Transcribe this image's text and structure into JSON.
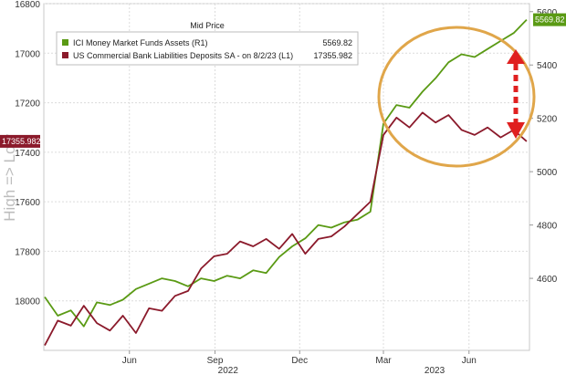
{
  "chart_data": {
    "type": "line",
    "title": "Mid Price",
    "ylabel_left": "High => Low",
    "left_axis": {
      "inverted": true,
      "ylim": [
        16800,
        18200
      ],
      "ticks": [
        16800,
        17000,
        17200,
        17400,
        17600,
        17800,
        18000
      ]
    },
    "right_axis": {
      "ylim": [
        4330,
        5630
      ],
      "ticks": [
        4600,
        4800,
        5000,
        5200,
        5400,
        5600
      ]
    },
    "xlim": [
      "2022-03-01",
      "2023-08-05"
    ],
    "x_ticks": [
      {
        "label": "Jun",
        "date": "2022-06-01"
      },
      {
        "label": "Sep",
        "date": "2022-09-01"
      },
      {
        "label": "Dec",
        "date": "2022-12-01"
      },
      {
        "label": "Mar",
        "date": "2023-03-01"
      },
      {
        "label": "Jun",
        "date": "2023-06-01"
      }
    ],
    "x_years": [
      {
        "label": "2022",
        "date": "2022-09-15"
      },
      {
        "label": "2023",
        "date": "2023-04-25"
      }
    ],
    "grid": true,
    "legend_position": "top-left",
    "series": [
      {
        "name": "ICI Money Market Funds Assets (R1)",
        "legend_value": "5569.82",
        "last_label": "5569.82",
        "axis": "right",
        "color": "#5a9a14",
        "x": [
          "2022-03-02",
          "2022-03-16",
          "2022-03-30",
          "2022-04-13",
          "2022-04-27",
          "2022-05-11",
          "2022-05-25",
          "2022-06-08",
          "2022-06-22",
          "2022-07-06",
          "2022-07-20",
          "2022-08-03",
          "2022-08-17",
          "2022-08-31",
          "2022-09-14",
          "2022-09-28",
          "2022-10-12",
          "2022-10-26",
          "2022-11-09",
          "2022-11-23",
          "2022-12-07",
          "2022-12-21",
          "2023-01-04",
          "2023-01-18",
          "2023-02-01",
          "2023-02-15",
          "2023-03-01",
          "2023-03-15",
          "2023-03-29",
          "2023-04-12",
          "2023-04-26",
          "2023-05-10",
          "2023-05-24",
          "2023-06-07",
          "2023-06-21",
          "2023-07-05",
          "2023-07-19",
          "2023-08-02"
        ],
        "values": [
          4530,
          4460,
          4480,
          4420,
          4510,
          4500,
          4520,
          4560,
          4580,
          4600,
          4590,
          4570,
          4600,
          4590,
          4610,
          4600,
          4630,
          4620,
          4680,
          4720,
          4750,
          4800,
          4790,
          4810,
          4820,
          4850,
          5180,
          5250,
          5240,
          5300,
          5350,
          5410,
          5440,
          5430,
          5460,
          5490,
          5520,
          5569.82
        ]
      },
      {
        "name": "US Commercial Bank Liabilities Deposits SA - on 8/2/23 (L1)",
        "legend_value": "17355.982",
        "last_label": "17355.982",
        "axis": "left",
        "color": "#8b1a2b",
        "x": [
          "2022-03-02",
          "2022-03-16",
          "2022-03-30",
          "2022-04-13",
          "2022-04-27",
          "2022-05-11",
          "2022-05-25",
          "2022-06-08",
          "2022-06-22",
          "2022-07-06",
          "2022-07-20",
          "2022-08-03",
          "2022-08-17",
          "2022-08-31",
          "2022-09-14",
          "2022-09-28",
          "2022-10-12",
          "2022-10-26",
          "2022-11-09",
          "2022-11-23",
          "2022-12-07",
          "2022-12-21",
          "2023-01-04",
          "2023-01-18",
          "2023-02-01",
          "2023-02-15",
          "2023-03-01",
          "2023-03-15",
          "2023-03-29",
          "2023-04-12",
          "2023-04-26",
          "2023-05-10",
          "2023-05-24",
          "2023-06-07",
          "2023-06-21",
          "2023-07-05",
          "2023-07-19",
          "2023-08-02"
        ],
        "values": [
          18180,
          18080,
          18100,
          18020,
          18090,
          18120,
          18060,
          18130,
          18030,
          18040,
          17980,
          17960,
          17870,
          17820,
          17810,
          17760,
          17780,
          17750,
          17790,
          17730,
          17810,
          17750,
          17740,
          17700,
          17650,
          17600,
          17330,
          17260,
          17300,
          17240,
          17280,
          17250,
          17310,
          17330,
          17300,
          17340,
          17310,
          17355.982
        ]
      }
    ],
    "annotations": [
      "highlight-ellipse",
      "double-arrow"
    ]
  }
}
